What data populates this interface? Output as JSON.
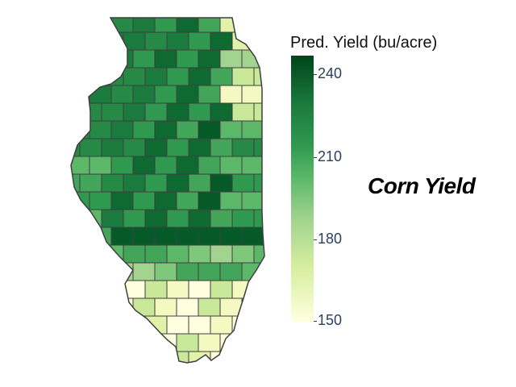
{
  "title": "Corn Yield",
  "legend": {
    "title": "Pred. Yield (bu/acre)",
    "ticks": [
      {
        "value": 240,
        "label": "240"
      },
      {
        "value": 210,
        "label": "210"
      },
      {
        "value": 180,
        "label": "180"
      },
      {
        "value": 150,
        "label": "150"
      }
    ],
    "range": [
      150,
      245
    ],
    "colorscale": [
      "#ffffe0",
      "#d7ef9f",
      "#a3d48f",
      "#5cb868",
      "#2f9a4f",
      "#1b7a3d",
      "#00441b"
    ]
  },
  "map": {
    "region": "Illinois",
    "unit": "county"
  }
}
